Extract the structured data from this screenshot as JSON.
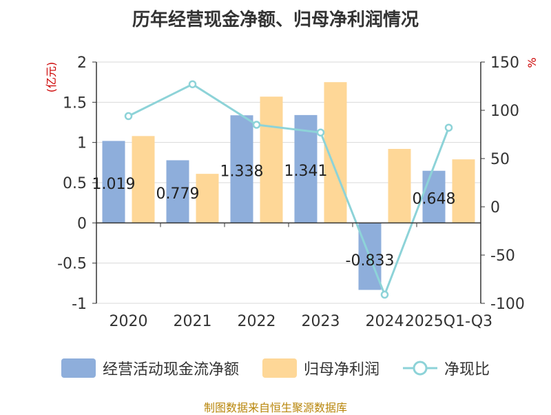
{
  "title": "历年经营现金净额、归母净利润情况",
  "source": "制图数据来自恒生聚源数据库",
  "chart_data": {
    "type": "bar",
    "categories": [
      "2020",
      "2021",
      "2022",
      "2023",
      "2024",
      "2025Q1-Q3"
    ],
    "series": [
      {
        "name": "经营活动现金流净额",
        "type": "bar",
        "axis": "left",
        "color": "#8eaedb",
        "values": [
          1.019,
          0.779,
          1.338,
          1.341,
          -0.833,
          0.648
        ],
        "labels": [
          "1.019",
          "0.779",
          "1.338",
          "1.341",
          "-0.833",
          "0.648"
        ]
      },
      {
        "name": "归母净利润",
        "type": "bar",
        "axis": "left",
        "color": "#fed797",
        "values": [
          1.08,
          0.61,
          1.57,
          1.75,
          0.92,
          0.79
        ]
      },
      {
        "name": "净现比",
        "type": "line",
        "axis": "right",
        "color": "#8dd3d8",
        "values": [
          94,
          127,
          85,
          77,
          -91,
          82
        ]
      }
    ],
    "left_axis": {
      "label": "(亿元)",
      "ylim": [
        -1,
        2
      ],
      "ticks": [
        "-1",
        "-0.5",
        "0",
        "0.5",
        "1",
        "1.5",
        "2"
      ]
    },
    "right_axis": {
      "label": "%",
      "ylim": [
        -100,
        150
      ],
      "ticks": [
        "-100",
        "-50",
        "0",
        "50",
        "100",
        "150"
      ]
    },
    "grid": true,
    "legend_position": "bottom"
  }
}
